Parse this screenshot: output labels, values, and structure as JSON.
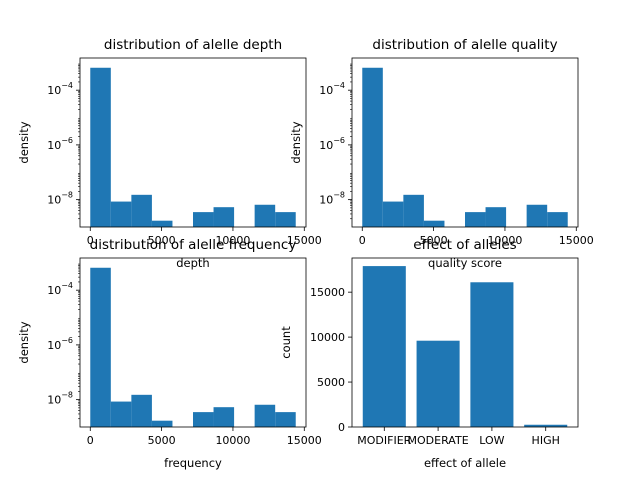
{
  "colors": {
    "bar": "#1f77b4",
    "axis": "#000000",
    "background": "#ffffff"
  },
  "chart_data": [
    {
      "type": "bar",
      "title": "distribution of alelle depth",
      "xlabel": "depth",
      "ylabel": "density",
      "yscale": "log",
      "xlim": [
        -720,
        15120
      ],
      "ylim": [
        1e-09,
        0.0015
      ],
      "xticks": [
        0,
        5000,
        10000,
        15000
      ],
      "xtick_labels": [
        "0",
        "5000",
        "10000",
        "15000"
      ],
      "yticks": [
        0.0001,
        1e-06,
        1e-08
      ],
      "ytick_labels": [
        "10^-4",
        "10^-6",
        "10^-8"
      ],
      "bin_edges": [
        0,
        1440,
        2880,
        4320,
        5760,
        7200,
        8640,
        10080,
        11520,
        12960,
        14400
      ],
      "values": [
        0.00066,
        8.5e-09,
        1.5e-08,
        1.7e-09,
        0,
        3.5e-09,
        5.3e-09,
        0,
        6.5e-09,
        3.5e-09
      ],
      "grid": false,
      "legend": "none"
    },
    {
      "type": "bar",
      "title": "distribution of alelle quality",
      "xlabel": "quality score",
      "ylabel": "density",
      "yscale": "log",
      "xlim": [
        -720,
        15120
      ],
      "ylim": [
        1e-09,
        0.0015
      ],
      "xticks": [
        0,
        5000,
        10000,
        15000
      ],
      "xtick_labels": [
        "0",
        "5000",
        "10000",
        "15000"
      ],
      "yticks": [
        0.0001,
        1e-06,
        1e-08
      ],
      "ytick_labels": [
        "10^-4",
        "10^-6",
        "10^-8"
      ],
      "bin_edges": [
        0,
        1440,
        2880,
        4320,
        5760,
        7200,
        8640,
        10080,
        11520,
        12960,
        14400
      ],
      "values": [
        0.00066,
        8.5e-09,
        1.5e-08,
        1.7e-09,
        0,
        3.5e-09,
        5.3e-09,
        0,
        6.5e-09,
        3.5e-09
      ],
      "grid": false,
      "legend": "none"
    },
    {
      "type": "bar",
      "title": "distribution of alelle frequency",
      "xlabel": "frequency",
      "ylabel": "density",
      "yscale": "log",
      "xlim": [
        -720,
        15120
      ],
      "ylim": [
        1e-09,
        0.0015
      ],
      "xticks": [
        0,
        5000,
        10000,
        15000
      ],
      "xtick_labels": [
        "0",
        "5000",
        "10000",
        "15000"
      ],
      "yticks": [
        0.0001,
        1e-06,
        1e-08
      ],
      "ytick_labels": [
        "10^-4",
        "10^-6",
        "10^-8"
      ],
      "bin_edges": [
        0,
        1440,
        2880,
        4320,
        5760,
        7200,
        8640,
        10080,
        11520,
        12960,
        14400
      ],
      "values": [
        0.00066,
        8.5e-09,
        1.5e-08,
        1.7e-09,
        0,
        3.5e-09,
        5.3e-09,
        0,
        6.5e-09,
        3.5e-09
      ],
      "grid": false,
      "legend": "none"
    },
    {
      "type": "bar",
      "title": "effect of alleles",
      "xlabel": "effect of allele",
      "ylabel": "count",
      "yscale": "linear",
      "ylim": [
        0,
        18800
      ],
      "categories": [
        "MODIFIER",
        "MODERATE",
        "LOW",
        "HIGH"
      ],
      "values": [
        17900,
        9600,
        16100,
        250
      ],
      "yticks": [
        0,
        5000,
        10000,
        15000
      ],
      "ytick_labels": [
        "0",
        "5000",
        "10000",
        "15000"
      ],
      "grid": false,
      "legend": "none"
    }
  ]
}
